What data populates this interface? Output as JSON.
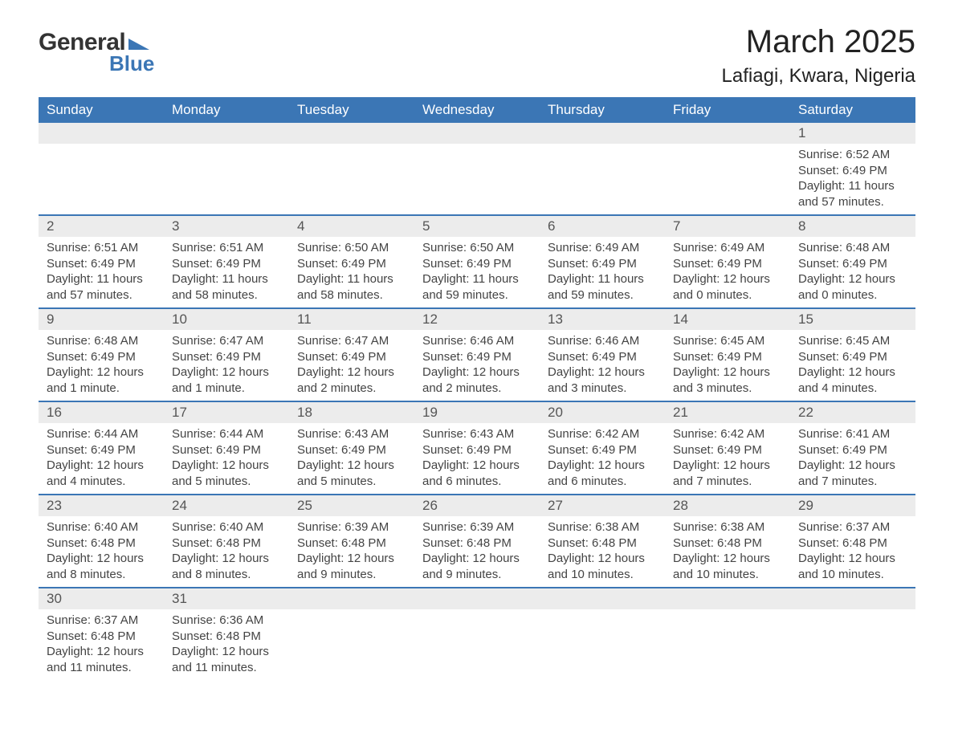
{
  "brand": {
    "word1": "General",
    "word2": "Blue",
    "flag_color": "#3b76b5"
  },
  "title": "March 2025",
  "location": "Lafiagi, Kwara, Nigeria",
  "colors": {
    "header_bg": "#3b76b5",
    "header_text": "#ffffff",
    "daynum_bg": "#ececec",
    "row_border": "#3b76b5",
    "text": "#333333"
  },
  "weekdays": [
    "Sunday",
    "Monday",
    "Tuesday",
    "Wednesday",
    "Thursday",
    "Friday",
    "Saturday"
  ],
  "weeks": [
    [
      null,
      null,
      null,
      null,
      null,
      null,
      {
        "day": "1",
        "sunrise": "Sunrise: 6:52 AM",
        "sunset": "Sunset: 6:49 PM",
        "daylight": "Daylight: 11 hours and 57 minutes."
      }
    ],
    [
      {
        "day": "2",
        "sunrise": "Sunrise: 6:51 AM",
        "sunset": "Sunset: 6:49 PM",
        "daylight": "Daylight: 11 hours and 57 minutes."
      },
      {
        "day": "3",
        "sunrise": "Sunrise: 6:51 AM",
        "sunset": "Sunset: 6:49 PM",
        "daylight": "Daylight: 11 hours and 58 minutes."
      },
      {
        "day": "4",
        "sunrise": "Sunrise: 6:50 AM",
        "sunset": "Sunset: 6:49 PM",
        "daylight": "Daylight: 11 hours and 58 minutes."
      },
      {
        "day": "5",
        "sunrise": "Sunrise: 6:50 AM",
        "sunset": "Sunset: 6:49 PM",
        "daylight": "Daylight: 11 hours and 59 minutes."
      },
      {
        "day": "6",
        "sunrise": "Sunrise: 6:49 AM",
        "sunset": "Sunset: 6:49 PM",
        "daylight": "Daylight: 11 hours and 59 minutes."
      },
      {
        "day": "7",
        "sunrise": "Sunrise: 6:49 AM",
        "sunset": "Sunset: 6:49 PM",
        "daylight": "Daylight: 12 hours and 0 minutes."
      },
      {
        "day": "8",
        "sunrise": "Sunrise: 6:48 AM",
        "sunset": "Sunset: 6:49 PM",
        "daylight": "Daylight: 12 hours and 0 minutes."
      }
    ],
    [
      {
        "day": "9",
        "sunrise": "Sunrise: 6:48 AM",
        "sunset": "Sunset: 6:49 PM",
        "daylight": "Daylight: 12 hours and 1 minute."
      },
      {
        "day": "10",
        "sunrise": "Sunrise: 6:47 AM",
        "sunset": "Sunset: 6:49 PM",
        "daylight": "Daylight: 12 hours and 1 minute."
      },
      {
        "day": "11",
        "sunrise": "Sunrise: 6:47 AM",
        "sunset": "Sunset: 6:49 PM",
        "daylight": "Daylight: 12 hours and 2 minutes."
      },
      {
        "day": "12",
        "sunrise": "Sunrise: 6:46 AM",
        "sunset": "Sunset: 6:49 PM",
        "daylight": "Daylight: 12 hours and 2 minutes."
      },
      {
        "day": "13",
        "sunrise": "Sunrise: 6:46 AM",
        "sunset": "Sunset: 6:49 PM",
        "daylight": "Daylight: 12 hours and 3 minutes."
      },
      {
        "day": "14",
        "sunrise": "Sunrise: 6:45 AM",
        "sunset": "Sunset: 6:49 PM",
        "daylight": "Daylight: 12 hours and 3 minutes."
      },
      {
        "day": "15",
        "sunrise": "Sunrise: 6:45 AM",
        "sunset": "Sunset: 6:49 PM",
        "daylight": "Daylight: 12 hours and 4 minutes."
      }
    ],
    [
      {
        "day": "16",
        "sunrise": "Sunrise: 6:44 AM",
        "sunset": "Sunset: 6:49 PM",
        "daylight": "Daylight: 12 hours and 4 minutes."
      },
      {
        "day": "17",
        "sunrise": "Sunrise: 6:44 AM",
        "sunset": "Sunset: 6:49 PM",
        "daylight": "Daylight: 12 hours and 5 minutes."
      },
      {
        "day": "18",
        "sunrise": "Sunrise: 6:43 AM",
        "sunset": "Sunset: 6:49 PM",
        "daylight": "Daylight: 12 hours and 5 minutes."
      },
      {
        "day": "19",
        "sunrise": "Sunrise: 6:43 AM",
        "sunset": "Sunset: 6:49 PM",
        "daylight": "Daylight: 12 hours and 6 minutes."
      },
      {
        "day": "20",
        "sunrise": "Sunrise: 6:42 AM",
        "sunset": "Sunset: 6:49 PM",
        "daylight": "Daylight: 12 hours and 6 minutes."
      },
      {
        "day": "21",
        "sunrise": "Sunrise: 6:42 AM",
        "sunset": "Sunset: 6:49 PM",
        "daylight": "Daylight: 12 hours and 7 minutes."
      },
      {
        "day": "22",
        "sunrise": "Sunrise: 6:41 AM",
        "sunset": "Sunset: 6:49 PM",
        "daylight": "Daylight: 12 hours and 7 minutes."
      }
    ],
    [
      {
        "day": "23",
        "sunrise": "Sunrise: 6:40 AM",
        "sunset": "Sunset: 6:48 PM",
        "daylight": "Daylight: 12 hours and 8 minutes."
      },
      {
        "day": "24",
        "sunrise": "Sunrise: 6:40 AM",
        "sunset": "Sunset: 6:48 PM",
        "daylight": "Daylight: 12 hours and 8 minutes."
      },
      {
        "day": "25",
        "sunrise": "Sunrise: 6:39 AM",
        "sunset": "Sunset: 6:48 PM",
        "daylight": "Daylight: 12 hours and 9 minutes."
      },
      {
        "day": "26",
        "sunrise": "Sunrise: 6:39 AM",
        "sunset": "Sunset: 6:48 PM",
        "daylight": "Daylight: 12 hours and 9 minutes."
      },
      {
        "day": "27",
        "sunrise": "Sunrise: 6:38 AM",
        "sunset": "Sunset: 6:48 PM",
        "daylight": "Daylight: 12 hours and 10 minutes."
      },
      {
        "day": "28",
        "sunrise": "Sunrise: 6:38 AM",
        "sunset": "Sunset: 6:48 PM",
        "daylight": "Daylight: 12 hours and 10 minutes."
      },
      {
        "day": "29",
        "sunrise": "Sunrise: 6:37 AM",
        "sunset": "Sunset: 6:48 PM",
        "daylight": "Daylight: 12 hours and 10 minutes."
      }
    ],
    [
      {
        "day": "30",
        "sunrise": "Sunrise: 6:37 AM",
        "sunset": "Sunset: 6:48 PM",
        "daylight": "Daylight: 12 hours and 11 minutes."
      },
      {
        "day": "31",
        "sunrise": "Sunrise: 6:36 AM",
        "sunset": "Sunset: 6:48 PM",
        "daylight": "Daylight: 12 hours and 11 minutes."
      },
      null,
      null,
      null,
      null,
      null
    ]
  ]
}
